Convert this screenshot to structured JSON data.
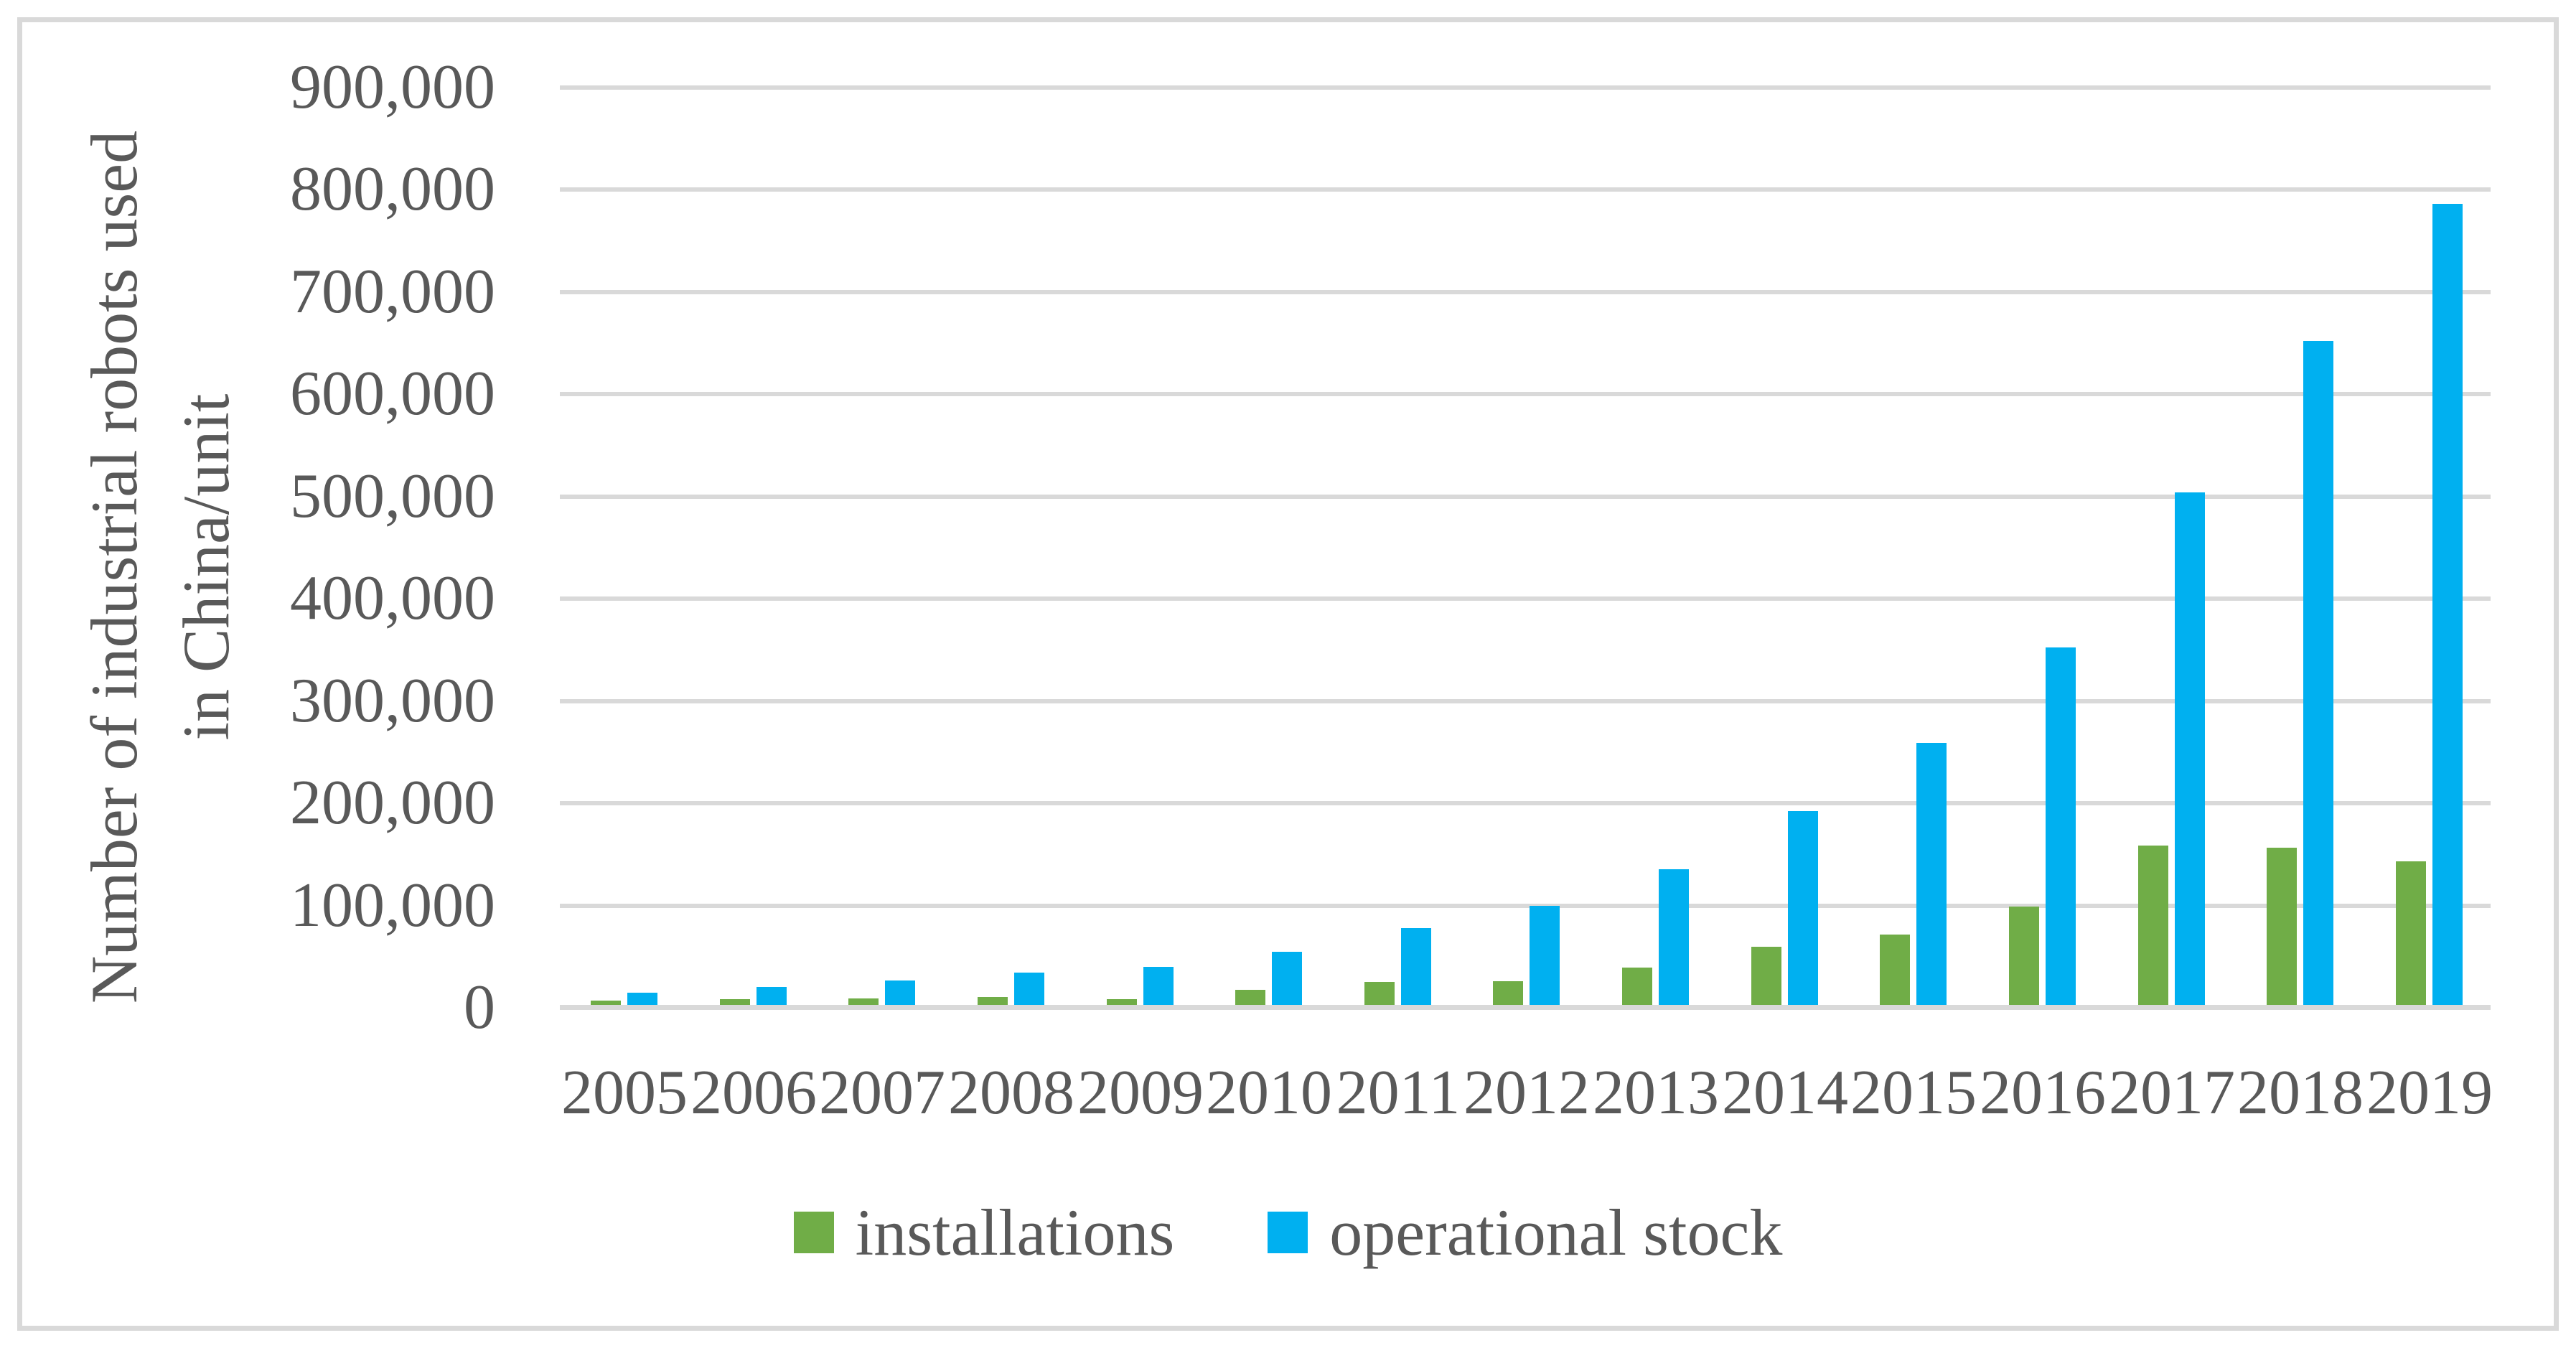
{
  "chart_data": {
    "type": "bar",
    "title": "",
    "ylabel_line1": "Number of industrial robots used",
    "ylabel_line2": "in China/unit",
    "categories": [
      "2005",
      "2006",
      "2007",
      "2008",
      "2009",
      "2010",
      "2011",
      "2012",
      "2013",
      "2014",
      "2015",
      "2016",
      "2017",
      "2018",
      "2019"
    ],
    "series": [
      {
        "name": "installations",
        "color": "#70AD47",
        "values": [
          4500,
          5800,
          6600,
          7900,
          5500,
          15000,
          22600,
          23000,
          36600,
          57100,
          68600,
          96500,
          156000,
          154000,
          140500
        ]
      },
      {
        "name": "operational stock",
        "color": "#00B0F0",
        "values": [
          11600,
          17300,
          23900,
          31800,
          37300,
          52300,
          74900,
          96900,
          132800,
          189400,
          256500,
          349500,
          501200,
          649400,
          783400
        ]
      }
    ],
    "ylim": [
      0,
      900000
    ],
    "ytick_step": 100000,
    "ytick_labels": [
      "0",
      "100,000",
      "200,000",
      "300,000",
      "400,000",
      "500,000",
      "600,000",
      "700,000",
      "800,000",
      "900,000"
    ],
    "grid": true,
    "legend_position": "bottom"
  },
  "colors": {
    "background": "#FFFFFF",
    "frame": "#D9D9D9",
    "gridline": "#D9D9D9",
    "axis_line": "#D9D9D9",
    "text": "#595959",
    "installations": "#70AD47",
    "operational_stock": "#00B0F0"
  }
}
